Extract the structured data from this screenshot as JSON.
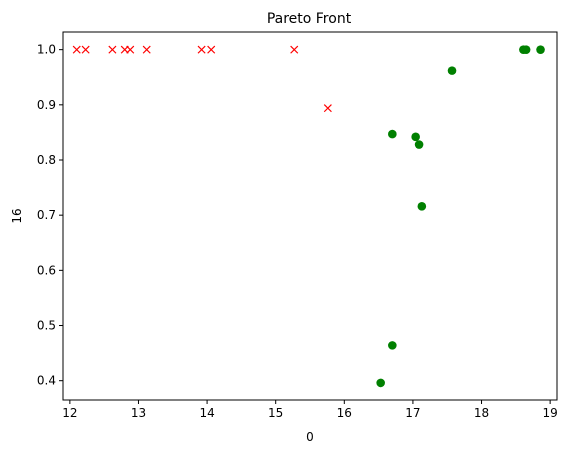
{
  "chart_data": {
    "type": "scatter",
    "title": "Pareto Front",
    "xlabel": "0",
    "ylabel": "16",
    "xlim": [
      11.9,
      19.1
    ],
    "ylim": [
      0.365,
      1.032
    ],
    "xticks": [
      12,
      13,
      14,
      15,
      16,
      17,
      18,
      19
    ],
    "yticks": [
      0.4,
      0.5,
      0.6,
      0.7,
      0.8,
      0.9,
      1.0
    ],
    "grid": false,
    "series": [
      {
        "marker": "x",
        "color": "#ff0000",
        "points": [
          [
            12.1,
            1.0
          ],
          [
            12.23,
            1.0
          ],
          [
            12.62,
            1.0
          ],
          [
            12.8,
            1.0
          ],
          [
            12.88,
            1.0
          ],
          [
            13.12,
            1.0
          ],
          [
            13.92,
            1.0
          ],
          [
            14.06,
            1.0
          ],
          [
            15.27,
            1.0
          ],
          [
            15.76,
            0.894
          ]
        ]
      },
      {
        "marker": "o",
        "color": "#008000",
        "points": [
          [
            16.53,
            0.396
          ],
          [
            16.7,
            0.464
          ],
          [
            16.7,
            0.847
          ],
          [
            17.04,
            0.842
          ],
          [
            17.09,
            0.828
          ],
          [
            17.13,
            0.716
          ],
          [
            17.57,
            0.962
          ],
          [
            18.61,
            1.0
          ],
          [
            18.65,
            1.0
          ],
          [
            18.86,
            1.0
          ]
        ]
      }
    ]
  }
}
